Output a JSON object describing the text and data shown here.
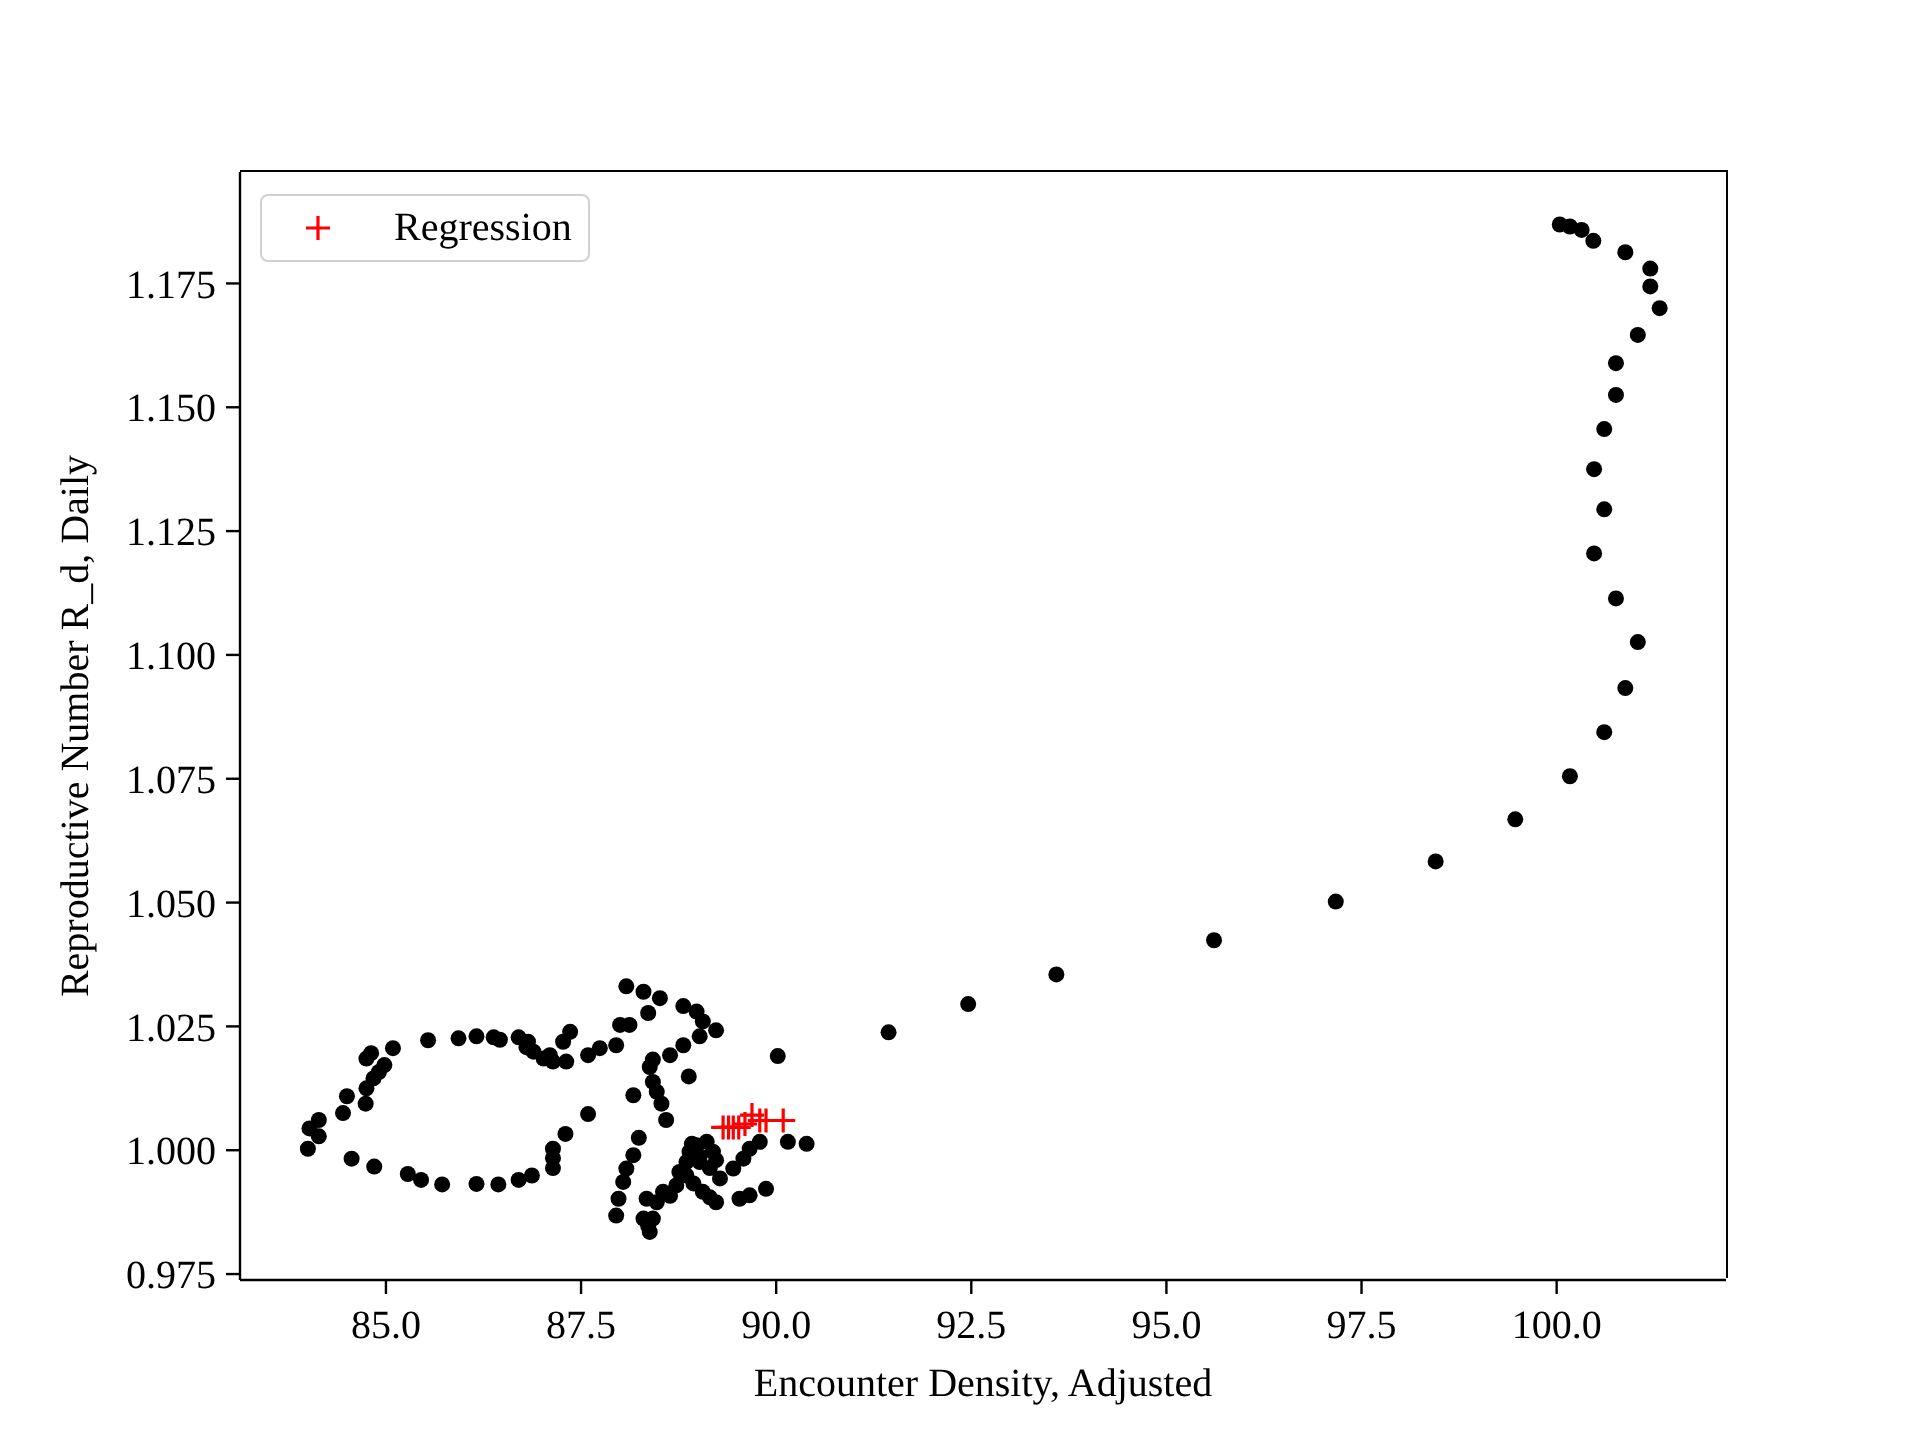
{
  "chart_data": {
    "type": "scatter",
    "xlabel": "Encounter Density, Adjusted",
    "ylabel": "Reproductive Number R_d, Daily",
    "xlim": [
      83.13,
      102.17
    ],
    "ylim": [
      0.9738,
      1.1975
    ],
    "xticks": [
      {
        "value": 85,
        "label": "85.0"
      },
      87.5,
      {
        "value": 90,
        "label": "90.0"
      },
      92.5,
      {
        "value": 95,
        "label": "95.0"
      },
      97.5,
      {
        "value": 100,
        "label": "100.0"
      }
    ],
    "yticks": [
      0.975,
      {
        "value": 1,
        "label": "1.000"
      },
      1.025,
      {
        "value": 1.05,
        "label": "1.050"
      },
      1.075,
      {
        "value": 1.1,
        "label": "1.100"
      },
      1.125,
      {
        "value": 1.15,
        "label": "1.150"
      },
      1.175
    ],
    "legend": "top left",
    "series": [
      {
        "color": "#000000",
        "marker": "circle",
        "x": [
          100.04,
          100.17,
          100.32,
          100.47,
          100.88,
          101.2,
          101.2,
          101.32,
          101.04,
          100.76,
          100.76,
          100.61,
          100.48,
          100.61,
          100.48,
          100.76,
          101.04,
          100.88,
          100.61,
          100.17,
          99.47,
          98.45,
          97.17,
          95.61,
          93.59,
          92.46,
          91.44,
          84.0,
          84.02,
          84.14,
          84.14,
          84.45,
          84.5,
          84.74,
          84.75,
          84.84,
          84.91,
          84.98,
          84.75,
          84.81,
          85.09,
          84.56,
          84.85,
          85.28,
          85.45,
          85.72,
          86.16,
          86.44,
          86.7,
          86.87,
          87.14,
          87.14,
          87.14,
          87.3,
          85.54,
          85.93,
          86.16,
          86.38,
          86.46,
          86.7,
          86.8,
          86.89,
          87.02,
          87.14,
          87.31,
          87.27,
          87.36,
          88.08,
          88.3,
          88.51,
          88.36,
          88.81,
          88.98,
          89.06,
          89.23,
          89.02,
          88.81,
          88.64,
          88.42,
          88.38,
          88.42,
          88.47,
          88.53,
          88.59,
          88.88,
          88.12,
          88.0,
          87.95,
          87.74,
          87.59,
          87.1,
          86.82,
          88.17,
          87.59,
          90.02,
          88.24,
          88.17,
          88.08,
          88.04,
          87.98,
          87.95,
          88.34,
          88.3,
          88.38,
          88.42,
          88.47,
          88.55,
          88.72,
          88.94,
          89.06,
          89.23,
          89.53,
          89.66,
          89.87,
          88.85,
          88.89,
          88.98,
          89.11,
          89.19,
          89.02,
          88.85,
          89.28,
          89.45,
          89.58,
          89.66,
          89.79,
          90.15,
          90.39,
          88.76,
          89.15,
          89.02,
          89.15,
          88.92,
          89.23,
          88.64,
          88.36
        ],
        "values": [
          1.1869,
          1.1865,
          1.1858,
          1.1836,
          1.1813,
          1.178,
          1.1744,
          1.17,
          1.1646,
          1.1589,
          1.1525,
          1.1456,
          1.1375,
          1.1294,
          1.1205,
          1.1114,
          1.1026,
          1.0933,
          1.0844,
          1.0755,
          1.0668,
          1.0583,
          1.0502,
          1.0424,
          1.0355,
          1.0295,
          1.0238,
          1.0003,
          1.0044,
          1.0061,
          1.0028,
          1.0075,
          1.0109,
          1.0094,
          1.0125,
          1.0145,
          1.0158,
          1.0172,
          1.0185,
          1.0196,
          1.0206,
          0.9983,
          0.9967,
          0.9952,
          0.994,
          0.9931,
          0.9932,
          0.9931,
          0.994,
          0.9949,
          1.0003,
          0.9984,
          0.9964,
          1.0033,
          1.0222,
          1.0226,
          1.023,
          1.0228,
          1.0223,
          1.0228,
          1.0208,
          1.0199,
          1.0185,
          1.0179,
          1.0179,
          1.0219,
          1.0239,
          1.0331,
          1.032,
          1.0307,
          1.0277,
          1.0291,
          1.028,
          1.026,
          1.0242,
          1.023,
          1.0212,
          1.0192,
          1.0183,
          1.0168,
          1.0138,
          1.0118,
          1.0094,
          1.0061,
          1.0149,
          1.0253,
          1.0253,
          1.0212,
          1.0206,
          1.0192,
          1.0192,
          1.0219,
          1.0111,
          1.0073,
          1.019,
          1.0025,
          0.999,
          0.9963,
          0.9936,
          0.9902,
          0.9868,
          0.9902,
          0.9862,
          0.9835,
          0.9862,
          0.9895,
          0.9916,
          0.9929,
          0.9933,
          0.9916,
          0.9895,
          0.9902,
          0.9909,
          0.9922,
          0.9976,
          0.9997,
          1.001,
          1.0017,
          0.9997,
          0.9976,
          0.9949,
          0.9943,
          0.9963,
          0.9983,
          1.0003,
          1.0017,
          1.0017,
          1.0013,
          0.9956,
          0.9905,
          0.9988,
          0.9964,
          1.0013,
          0.998,
          0.9908,
          0.9847
        ]
      },
      {
        "name": "Regression",
        "color": "#ff0000",
        "marker": "cross",
        "x": [
          89.32,
          89.39,
          89.45,
          89.52,
          89.6,
          89.69,
          89.79,
          89.87,
          90.09
        ],
        "values": [
          1.0046,
          1.0046,
          1.0046,
          1.0046,
          1.0053,
          1.0071,
          1.006,
          1.006,
          1.006
        ]
      }
    ]
  }
}
